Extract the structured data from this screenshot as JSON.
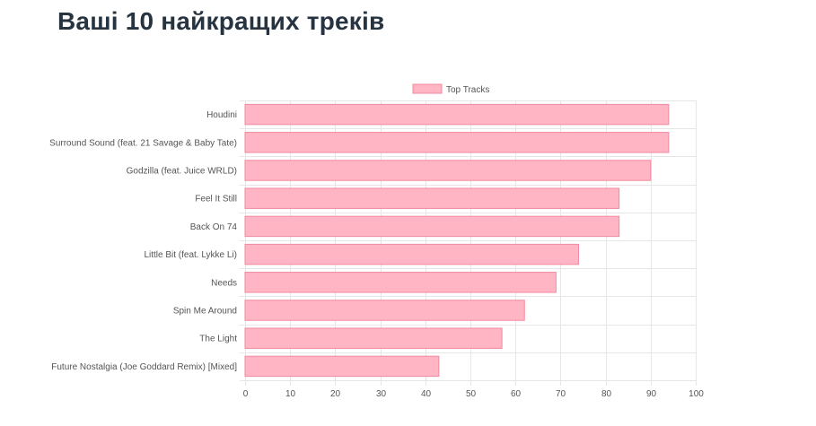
{
  "page": {
    "title": "Ваші 10 найкращих треків"
  },
  "chart_data": {
    "type": "bar",
    "orientation": "horizontal",
    "categories": [
      "Houdini",
      "Surround Sound (feat. 21 Savage & Baby Tate)",
      "Godzilla (feat. Juice WRLD)",
      "Feel It Still",
      "Back On 74",
      "Little Bit (feat. Lykke Li)",
      "Needs",
      "Spin Me Around",
      "The Light",
      "Future Nostalgia (Joe Goddard Remix) [Mixed]"
    ],
    "series": [
      {
        "name": "Top Tracks",
        "values": [
          94,
          94,
          90,
          83,
          83,
          74,
          69,
          62,
          57,
          43
        ]
      }
    ],
    "xlim": [
      0,
      100
    ],
    "xticks": [
      0,
      10,
      20,
      30,
      40,
      50,
      60,
      70,
      80,
      90,
      100
    ],
    "grid": true,
    "legend": "top-center",
    "colors": {
      "bar_fill": "#ffb5c4",
      "bar_stroke": "#f28aa0",
      "grid": "#e6e6e6",
      "text": "#555555",
      "title": "#263340"
    }
  }
}
